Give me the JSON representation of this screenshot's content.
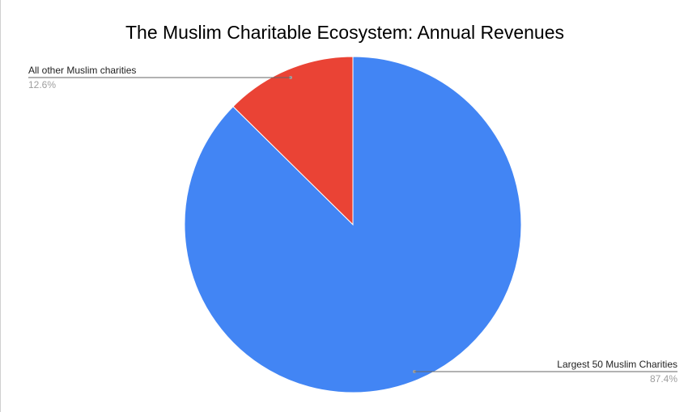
{
  "chart_data": {
    "type": "pie",
    "title": "The Muslim Charitable Ecosystem: Annual Revenues",
    "slices": [
      {
        "label": "All other Muslim charities",
        "value": 12.6,
        "value_label": "12.6%",
        "color": "#ea4335"
      },
      {
        "label": "Largest 50 Muslim Charities",
        "value": 87.4,
        "value_label": "87.4%",
        "color": "#4285f4"
      }
    ],
    "legend": "none"
  }
}
